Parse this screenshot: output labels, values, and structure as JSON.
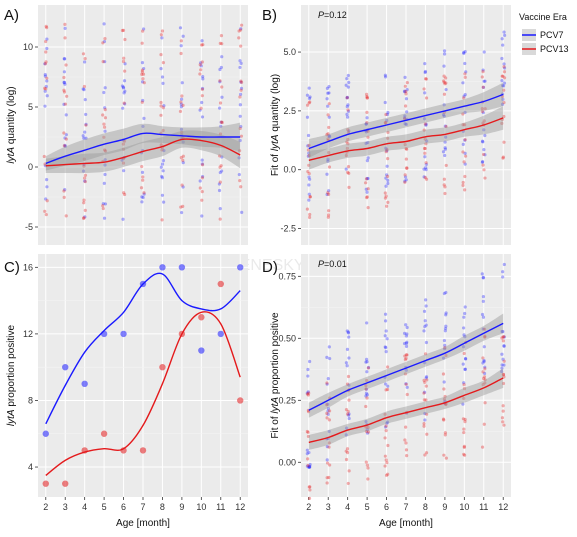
{
  "figure": {
    "legend": {
      "title": "Vaccine Era",
      "entries": [
        {
          "name": "PCV7",
          "color": "#1a1aff"
        },
        {
          "name": "PCV13",
          "color": "#e41a1c"
        }
      ]
    },
    "watermark": "GENESKY 天昊生物"
  },
  "chart_data": [
    {
      "panel": "A)",
      "type": "scatter",
      "ylabel_parts": [
        "lytA",
        " quantity (log)"
      ],
      "xlim": [
        1.6,
        12.4
      ],
      "ylim": [
        -6.5,
        13.5
      ],
      "x_ticks": [],
      "y_ticks": [
        -5,
        0,
        5,
        10
      ],
      "grid": true,
      "series": [
        {
          "name": "PCV7",
          "color": "#1a1aff",
          "x": [
            2,
            3,
            4,
            5,
            6,
            7,
            8,
            9,
            10,
            11,
            12
          ],
          "y": [
            0.3,
            0.9,
            1.4,
            1.9,
            2.3,
            2.8,
            2.7,
            2.6,
            2.5,
            2.5,
            2.5
          ],
          "ci": [
            0.6,
            0.8,
            0.9,
            0.9,
            0.9,
            0.8,
            0.7,
            0.7,
            0.8,
            0.9,
            1.2
          ]
        },
        {
          "name": "PCV13",
          "color": "#e41a1c",
          "x": [
            2,
            3,
            4,
            5,
            6,
            7,
            8,
            9,
            10,
            11,
            12
          ],
          "y": [
            0.1,
            0.2,
            0.3,
            0.4,
            0.8,
            1.3,
            1.7,
            2.3,
            2.2,
            1.8,
            1.0
          ],
          "ci": [
            0.6,
            0.7,
            0.8,
            0.8,
            0.8,
            0.8,
            0.8,
            0.7,
            0.8,
            0.9,
            1.1
          ]
        }
      ],
      "points_range": [
        -4.5,
        12
      ]
    },
    {
      "panel": "B)",
      "type": "scatter",
      "annotation": "P=0.12",
      "ylabel_parts": [
        "Fit of ",
        "lytA",
        " quantity (log)"
      ],
      "xlim": [
        1.6,
        12.4
      ],
      "ylim": [
        -3.2,
        7.0
      ],
      "x_ticks": [],
      "y_ticks": [
        -2.5,
        0.0,
        2.5,
        5.0
      ],
      "y_tick_labels": [
        "-2.5",
        "0.0",
        "2.5",
        "5.0"
      ],
      "grid": true,
      "series": [
        {
          "name": "PCV7",
          "color": "#1a1aff",
          "x": [
            2,
            3,
            4,
            5,
            6,
            7,
            8,
            9,
            10,
            11,
            12
          ],
          "y": [
            0.9,
            1.2,
            1.5,
            1.7,
            1.9,
            2.1,
            2.3,
            2.5,
            2.7,
            2.9,
            3.2
          ],
          "ci": [
            0.4,
            0.3,
            0.3,
            0.3,
            0.3,
            0.3,
            0.3,
            0.3,
            0.3,
            0.4,
            0.5
          ]
        },
        {
          "name": "PCV13",
          "color": "#e41a1c",
          "x": [
            2,
            3,
            4,
            5,
            6,
            7,
            8,
            9,
            10,
            11,
            12
          ],
          "y": [
            0.4,
            0.6,
            0.8,
            0.9,
            1.1,
            1.2,
            1.4,
            1.5,
            1.7,
            1.9,
            2.2
          ],
          "ci": [
            0.4,
            0.3,
            0.3,
            0.3,
            0.3,
            0.3,
            0.3,
            0.3,
            0.3,
            0.4,
            0.5
          ]
        }
      ],
      "points_range": [
        -3.0,
        6.7
      ]
    },
    {
      "panel": "C)",
      "type": "scatter",
      "ylabel_parts": [
        "lytA",
        "  proportion positive"
      ],
      "xlabel": "Age [month]",
      "xlim": [
        1.6,
        12.4
      ],
      "ylim": [
        2.2,
        16.8
      ],
      "x_ticks": [
        2,
        3,
        4,
        5,
        6,
        7,
        8,
        9,
        10,
        11,
        12
      ],
      "y_ticks": [
        4,
        8,
        12,
        16
      ],
      "grid": true,
      "series": [
        {
          "name": "PCV7",
          "color": "#1a1aff",
          "x": [
            2,
            3,
            4,
            5,
            6,
            7,
            8,
            9,
            10,
            11,
            12
          ],
          "y": [
            6,
            10,
            9,
            12,
            12,
            15,
            16,
            16,
            11,
            12,
            16
          ],
          "curve": [
            6.6,
            8.9,
            10.9,
            12.2,
            13.3,
            15.0,
            15.6,
            14.0,
            13.5,
            13.5,
            14.6
          ]
        },
        {
          "name": "PCV13",
          "color": "#e41a1c",
          "x": [
            2,
            3,
            4,
            5,
            6,
            7,
            8,
            9,
            10,
            11,
            12
          ],
          "y": [
            3,
            3,
            5,
            6,
            5,
            5,
            10,
            12,
            13,
            15,
            8
          ],
          "curve": [
            3.5,
            4.4,
            4.9,
            5.1,
            5.1,
            6.5,
            9.0,
            12.0,
            13.3,
            12.6,
            9.4
          ]
        }
      ]
    },
    {
      "panel": "D)",
      "type": "scatter",
      "annotation": "P=0.01",
      "ylabel_parts": [
        "Fit of ",
        "lytA",
        " proportion positive"
      ],
      "xlabel": "Age [month]",
      "xlim": [
        1.6,
        12.4
      ],
      "ylim": [
        -0.14,
        0.84
      ],
      "x_ticks": [
        2,
        3,
        4,
        5,
        6,
        7,
        8,
        9,
        10,
        11,
        12
      ],
      "y_ticks": [
        0.0,
        0.25,
        0.5,
        0.75
      ],
      "y_tick_labels": [
        "0.00",
        "0.25",
        "0.50",
        "0.75"
      ],
      "grid": true,
      "series": [
        {
          "name": "PCV7",
          "color": "#1a1aff",
          "x": [
            2,
            3,
            4,
            5,
            6,
            7,
            8,
            9,
            10,
            11,
            12
          ],
          "y": [
            0.21,
            0.25,
            0.29,
            0.32,
            0.35,
            0.38,
            0.41,
            0.44,
            0.48,
            0.52,
            0.56
          ],
          "ci": [
            0.03,
            0.03,
            0.025,
            0.025,
            0.025,
            0.025,
            0.025,
            0.025,
            0.03,
            0.03,
            0.04
          ]
        },
        {
          "name": "PCV13",
          "color": "#e41a1c",
          "x": [
            2,
            3,
            4,
            5,
            6,
            7,
            8,
            9,
            10,
            11,
            12
          ],
          "y": [
            0.08,
            0.1,
            0.13,
            0.15,
            0.18,
            0.2,
            0.22,
            0.24,
            0.27,
            0.3,
            0.34
          ],
          "ci": [
            0.03,
            0.03,
            0.025,
            0.025,
            0.025,
            0.025,
            0.025,
            0.025,
            0.03,
            0.03,
            0.04
          ]
        }
      ],
      "points_range": [
        -0.1,
        0.8
      ]
    }
  ]
}
